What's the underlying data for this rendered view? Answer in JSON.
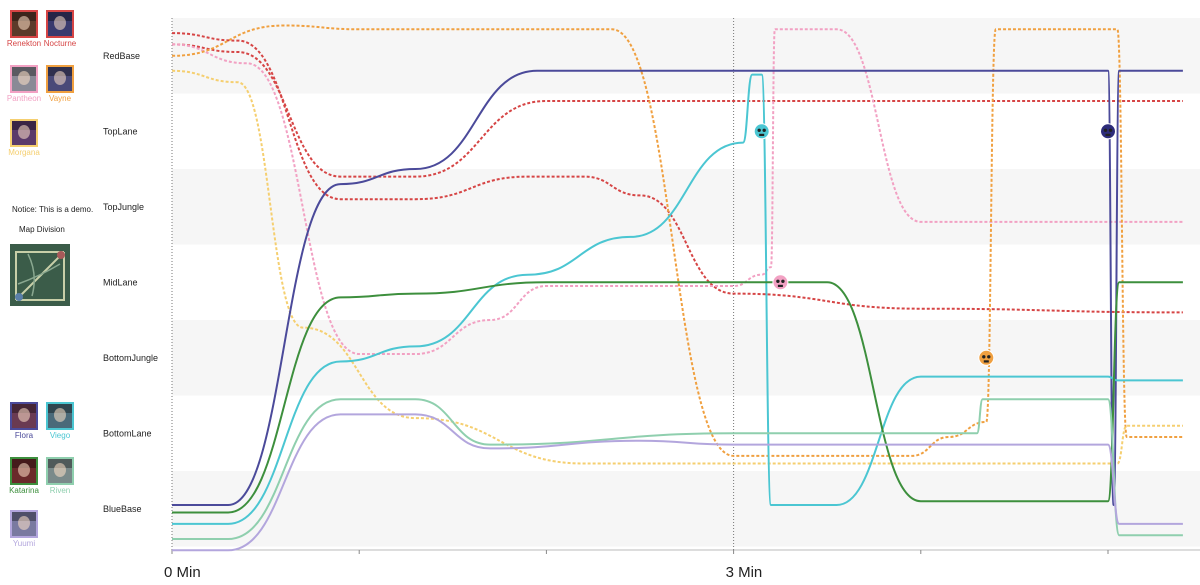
{
  "red_team": [
    {
      "name": "Renekton",
      "color": "#d64545",
      "portrait": "#5b3a2a"
    },
    {
      "name": "Nocturne",
      "color": "#d64545",
      "portrait": "#3a3a6e"
    },
    {
      "name": "Pantheon",
      "color": "#f2a1c3",
      "portrait": "#8a8a96"
    },
    {
      "name": "Vayne",
      "color": "#f0a040",
      "portrait": "#4a4a78"
    },
    {
      "name": "Morgana",
      "color": "#f5cf70",
      "portrait": "#5a3a6a"
    }
  ],
  "blue_team": [
    {
      "name": "Flora",
      "color": "#4b4a9a",
      "portrait": "#6a3a52"
    },
    {
      "name": "Viego",
      "color": "#4bc6d2",
      "portrait": "#4a6a7a"
    },
    {
      "name": "Katarina",
      "color": "#3d8f3d",
      "portrait": "#6a2a2a"
    },
    {
      "name": "Riven",
      "color": "#8fcfae",
      "portrait": "#7a8a8a"
    },
    {
      "name": "Yuumi",
      "color": "#b3a6dd",
      "portrait": "#7a7aa0"
    }
  ],
  "notice": "Notice: This is a demo.",
  "map_division_label": "Map Division",
  "chart_data": {
    "type": "line",
    "x_unit": "min",
    "xlim": [
      0,
      5.4
    ],
    "x_ticks": [
      {
        "value": 0,
        "label": "0 Min"
      },
      {
        "value": 1,
        "label": ""
      },
      {
        "value": 2,
        "label": ""
      },
      {
        "value": 3,
        "label": "3 Min"
      },
      {
        "value": 4,
        "label": ""
      },
      {
        "value": 5,
        "label": ""
      }
    ],
    "y_categories": [
      "RedBase",
      "TopLane",
      "TopJungle",
      "MidLane",
      "BottomJungle",
      "BottomLane",
      "BlueBase"
    ],
    "grid": "alternating horizontal bands",
    "series": [
      {
        "name": "Renekton",
        "team": "red",
        "dashed": true,
        "color": "#d64545",
        "points": [
          [
            0,
            -0.15
          ],
          [
            0.35,
            -0.05
          ],
          [
            0.9,
            1.6
          ],
          [
            1.3,
            1.6
          ],
          [
            2.0,
            0.6
          ],
          [
            3.0,
            0.6
          ],
          [
            5.4,
            0.6
          ]
        ]
      },
      {
        "name": "Nocturne",
        "team": "red",
        "dashed": true,
        "color": "#d64545",
        "points": [
          [
            0,
            -0.3
          ],
          [
            0.35,
            -0.2
          ],
          [
            0.9,
            1.9
          ],
          [
            1.3,
            1.9
          ],
          [
            1.9,
            1.6
          ],
          [
            2.2,
            1.6
          ],
          [
            2.5,
            1.85
          ],
          [
            3.0,
            3.15
          ],
          [
            4.0,
            3.35
          ],
          [
            5.4,
            3.4
          ]
        ]
      },
      {
        "name": "Pantheon",
        "team": "red",
        "dashed": true,
        "color": "#f2a1c3",
        "points": [
          [
            0,
            -0.15
          ],
          [
            0.4,
            0.1
          ],
          [
            1.0,
            3.95
          ],
          [
            1.3,
            3.95
          ],
          [
            1.7,
            3.5
          ],
          [
            2.0,
            3.05
          ],
          [
            3.0,
            3.05
          ],
          [
            3.15,
            2.9
          ],
          [
            3.2,
            2.8
          ],
          [
            3.22,
            -0.35
          ],
          [
            3.55,
            -0.35
          ],
          [
            4.0,
            2.2
          ],
          [
            4.5,
            2.2
          ],
          [
            5.4,
            2.2
          ]
        ]
      },
      {
        "name": "Vayne",
        "team": "red",
        "dashed": true,
        "color": "#f0a040",
        "points": [
          [
            0,
            0.0
          ],
          [
            0.6,
            -0.4
          ],
          [
            1.0,
            -0.35
          ],
          [
            2.35,
            -0.35
          ],
          [
            3.0,
            5.3
          ],
          [
            3.95,
            5.3
          ],
          [
            4.15,
            5.05
          ],
          [
            4.35,
            4.85
          ],
          [
            4.4,
            -0.35
          ],
          [
            4.6,
            -0.35
          ],
          [
            4.8,
            -0.35
          ],
          [
            5.05,
            -0.35
          ],
          [
            5.1,
            5.05
          ],
          [
            5.4,
            5.05
          ]
        ]
      },
      {
        "name": "Morgana",
        "team": "red",
        "dashed": true,
        "color": "#f5cf70",
        "points": [
          [
            0,
            0.2
          ],
          [
            0.35,
            0.35
          ],
          [
            0.7,
            3.6
          ],
          [
            1.3,
            4.8
          ],
          [
            2.2,
            5.4
          ],
          [
            3.0,
            5.4
          ],
          [
            5.0,
            5.4
          ],
          [
            5.05,
            5.4
          ],
          [
            5.1,
            4.9
          ],
          [
            5.4,
            4.9
          ]
        ]
      },
      {
        "name": "Flora",
        "team": "blue",
        "dashed": false,
        "color": "#4b4a9a",
        "points": [
          [
            0,
            5.95
          ],
          [
            0.3,
            5.95
          ],
          [
            0.9,
            1.7
          ],
          [
            1.3,
            1.5
          ],
          [
            1.95,
            0.2
          ],
          [
            3.0,
            0.2
          ],
          [
            5.0,
            0.2
          ],
          [
            5.03,
            5.95
          ],
          [
            5.06,
            0.2
          ],
          [
            5.4,
            0.2
          ]
        ]
      },
      {
        "name": "Viego",
        "team": "blue",
        "dashed": false,
        "color": "#4bc6d2",
        "points": [
          [
            0,
            6.2
          ],
          [
            0.3,
            6.2
          ],
          [
            0.9,
            4.05
          ],
          [
            1.3,
            3.85
          ],
          [
            1.9,
            2.9
          ],
          [
            2.45,
            2.4
          ],
          [
            3.05,
            1.15
          ],
          [
            3.1,
            0.25
          ],
          [
            3.15,
            0.25
          ],
          [
            3.2,
            5.95
          ],
          [
            3.55,
            5.95
          ],
          [
            4.0,
            4.25
          ],
          [
            4.5,
            4.25
          ],
          [
            5.0,
            4.25
          ],
          [
            5.05,
            4.3
          ],
          [
            5.4,
            4.3
          ]
        ]
      },
      {
        "name": "Katarina",
        "team": "blue",
        "dashed": false,
        "color": "#3d8f3d",
        "points": [
          [
            0,
            6.05
          ],
          [
            0.3,
            6.05
          ],
          [
            0.9,
            3.2
          ],
          [
            1.3,
            3.15
          ],
          [
            2.0,
            3.0
          ],
          [
            3.0,
            3.0
          ],
          [
            3.5,
            3.0
          ],
          [
            4.0,
            5.9
          ],
          [
            4.5,
            5.9
          ],
          [
            5.0,
            5.9
          ],
          [
            5.06,
            3.0
          ],
          [
            5.4,
            3.0
          ]
        ]
      },
      {
        "name": "Riven",
        "team": "blue",
        "dashed": false,
        "color": "#8fcfae",
        "points": [
          [
            0,
            6.4
          ],
          [
            0.3,
            6.4
          ],
          [
            0.9,
            4.55
          ],
          [
            1.3,
            4.55
          ],
          [
            1.7,
            5.15
          ],
          [
            3.0,
            5.0
          ],
          [
            4.3,
            5.0
          ],
          [
            4.33,
            4.55
          ],
          [
            5.0,
            4.55
          ],
          [
            5.06,
            6.35
          ],
          [
            5.4,
            6.35
          ]
        ]
      },
      {
        "name": "Yuumi",
        "team": "blue",
        "dashed": false,
        "color": "#b3a6dd",
        "points": [
          [
            0,
            6.55
          ],
          [
            0.3,
            6.55
          ],
          [
            0.9,
            4.75
          ],
          [
            1.3,
            4.75
          ],
          [
            1.7,
            5.2
          ],
          [
            2.5,
            5.1
          ],
          [
            3.0,
            5.15
          ],
          [
            5.0,
            5.15
          ],
          [
            5.06,
            6.2
          ],
          [
            5.4,
            6.2
          ]
        ]
      }
    ],
    "death_markers": [
      {
        "champion": "Viego",
        "x": 3.15,
        "y_category": "TopLane",
        "color": "#4bc6d2"
      },
      {
        "champion": "Pantheon",
        "x": 3.25,
        "y_category": "MidLane",
        "color": "#f2a1c3"
      },
      {
        "champion": "Vayne",
        "x": 4.35,
        "y_category": "BottomJungle",
        "color": "#f0a040"
      },
      {
        "champion": "Flora",
        "x": 5.0,
        "y_category": "TopLane",
        "color": "#2d2c7a"
      }
    ]
  }
}
